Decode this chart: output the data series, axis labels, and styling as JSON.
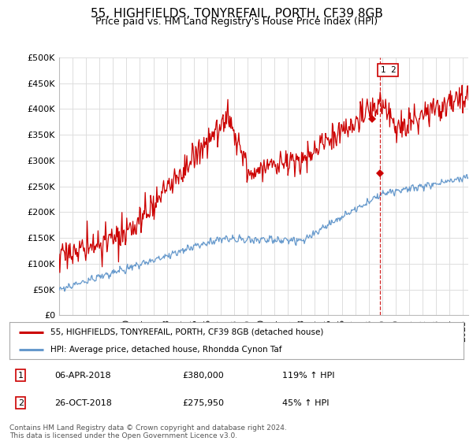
{
  "title": "55, HIGHFIELDS, TONYREFAIL, PORTH, CF39 8GB",
  "subtitle": "Price paid vs. HM Land Registry's House Price Index (HPI)",
  "ylabel_ticks": [
    "£0",
    "£50K",
    "£100K",
    "£150K",
    "£200K",
    "£250K",
    "£300K",
    "£350K",
    "£400K",
    "£450K",
    "£500K"
  ],
  "ytick_values": [
    0,
    50000,
    100000,
    150000,
    200000,
    250000,
    300000,
    350000,
    400000,
    450000,
    500000
  ],
  "ylim": [
    0,
    500000
  ],
  "xlim_start": 1995.0,
  "xlim_end": 2025.4,
  "red_line_color": "#cc0000",
  "blue_line_color": "#6699cc",
  "vline_color": "#cc0000",
  "sale1_x": 2018.27,
  "sale1_y": 380000,
  "sale2_x": 2018.82,
  "sale2_y": 275950,
  "legend_line1": "55, HIGHFIELDS, TONYREFAIL, PORTH, CF39 8GB (detached house)",
  "legend_line2": "HPI: Average price, detached house, Rhondda Cynon Taf",
  "table_row1": [
    "1",
    "06-APR-2018",
    "£380,000",
    "119% ↑ HPI"
  ],
  "table_row2": [
    "2",
    "26-OCT-2018",
    "£275,950",
    "45% ↑ HPI"
  ],
  "footer": "Contains HM Land Registry data © Crown copyright and database right 2024.\nThis data is licensed under the Open Government Licence v3.0.",
  "bg_color": "#ffffff",
  "grid_color": "#dddddd",
  "title_fontsize": 11,
  "subtitle_fontsize": 9,
  "axis_fontsize": 8
}
